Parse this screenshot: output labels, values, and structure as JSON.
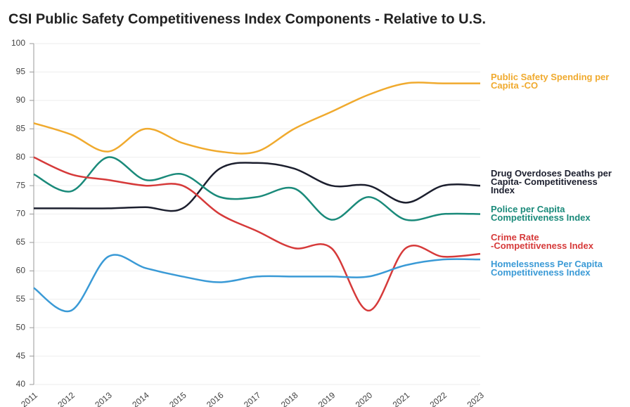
{
  "chart_data": {
    "type": "line",
    "title": "CSI Public Safety Competitiveness Index Components - Relative to U.S.",
    "categories": [
      "2011",
      "2012",
      "2013",
      "2014",
      "2015",
      "2016",
      "2017",
      "2018",
      "2019",
      "2020",
      "2021",
      "2022",
      "2023"
    ],
    "ylim": [
      40,
      100
    ],
    "yticks": [
      40,
      45,
      50,
      55,
      60,
      65,
      70,
      75,
      80,
      85,
      90,
      95,
      100
    ],
    "grid": true,
    "series": [
      {
        "name": "Public Safety Spending per\nCapita -CO",
        "color": "#f0aa2e",
        "values": [
          86,
          84,
          81,
          85,
          82.5,
          81,
          81,
          85,
          88,
          91,
          93,
          93,
          93
        ]
      },
      {
        "name": "Drug Overdoses Deaths per\nCapita- Competitiveness\nIndex",
        "color": "#1c1f2e",
        "values": [
          71,
          71,
          71,
          71.2,
          71,
          78,
          79,
          78,
          75,
          75,
          72,
          75,
          75
        ]
      },
      {
        "name": "Police per Capita\nCompetitiveness Index",
        "color": "#1a8a7a",
        "values": [
          77,
          74,
          80,
          76,
          77,
          73,
          73,
          74.5,
          69,
          73,
          69,
          70,
          70
        ]
      },
      {
        "name": "Crime Rate\n-Competitiveness Index",
        "color": "#d63a3a",
        "values": [
          80,
          77,
          76,
          75,
          75,
          70,
          67,
          64,
          64,
          53,
          64,
          62.5,
          63
        ]
      },
      {
        "name": "Homelessness Per Capita\nCompetitiveness Index",
        "color": "#3a9ad6",
        "values": [
          57,
          53,
          62.5,
          60.5,
          59,
          58,
          59,
          59,
          59,
          59,
          61,
          62,
          62
        ]
      }
    ]
  }
}
